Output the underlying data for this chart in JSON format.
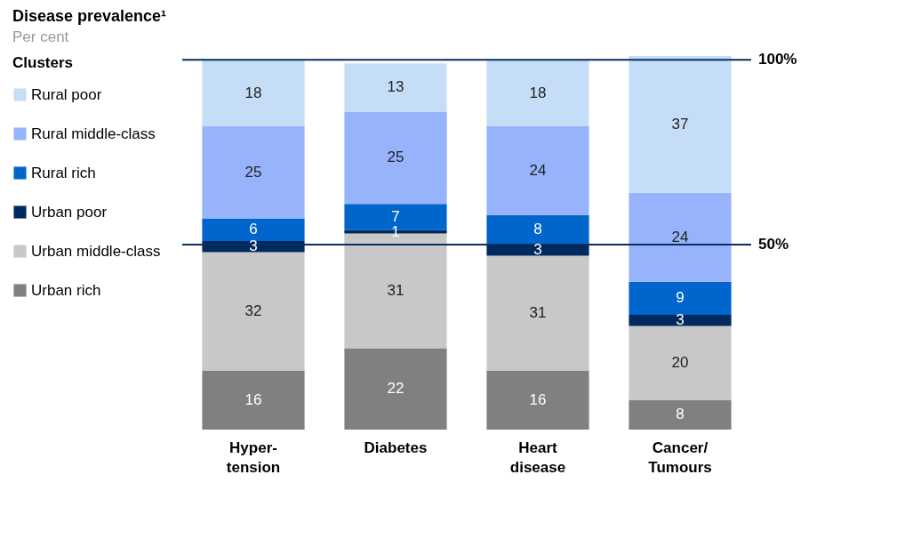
{
  "chart_data": {
    "type": "bar",
    "stacked": true,
    "title": "Disease prevalence¹",
    "subtitle": "Per cent",
    "legend_title": "Clusters",
    "legend": "left",
    "data_labels": true,
    "grid": false,
    "categories": [
      "Hyper-\ntension",
      "Diabetes",
      "Heart\ndisease",
      "Cancer/\nTumours"
    ],
    "series": [
      {
        "name": "Urban rich",
        "color": "#808080",
        "values": [
          16,
          22,
          16,
          8
        ]
      },
      {
        "name": "Urban middle-class",
        "color": "#c8c8c8",
        "values": [
          32,
          31,
          31,
          20
        ]
      },
      {
        "name": "Urban poor",
        "color": "#002960",
        "values": [
          3,
          1,
          3,
          3
        ]
      },
      {
        "name": "Rural rich",
        "color": "#0066cc",
        "values": [
          6,
          7,
          8,
          9
        ]
      },
      {
        "name": "Rural middle-class",
        "color": "#96b3fc",
        "values": [
          25,
          25,
          24,
          24
        ]
      },
      {
        "name": "Rural poor",
        "color": "#c6ddf8",
        "values": [
          18,
          13,
          18,
          37
        ]
      }
    ],
    "ref_lines": [
      {
        "axis": "y",
        "value": 100,
        "label": "100%",
        "color": "#0a2f5c"
      },
      {
        "axis": "y",
        "value": 50,
        "label": "50%",
        "color": "#0a2f5c"
      }
    ]
  }
}
